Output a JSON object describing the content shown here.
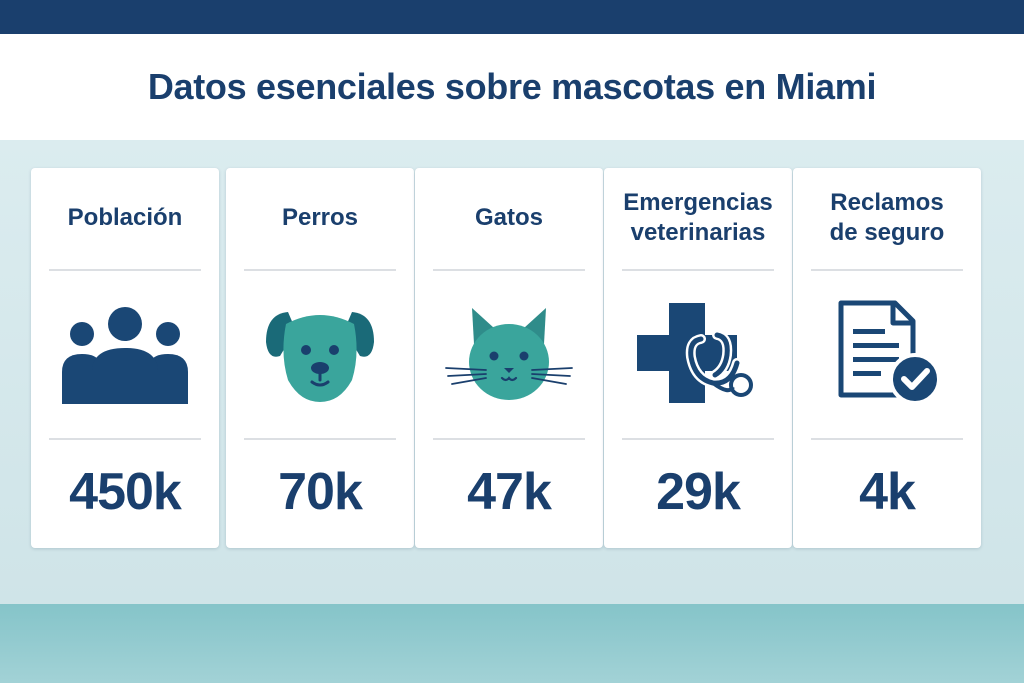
{
  "title": "Datos esenciales sobre mascotas en Miami",
  "colors": {
    "navy": "#1a3f6d",
    "teal": "#3aa59c",
    "background": "#d4e6ea",
    "bottom_band": "#8ec8cc"
  },
  "cards": [
    {
      "label": "Población",
      "icon": "people-icon",
      "value": "450k"
    },
    {
      "label": "Perros",
      "icon": "dog-icon",
      "value": "70k"
    },
    {
      "label": "Gatos",
      "icon": "cat-icon",
      "value": "47k"
    },
    {
      "label": "Emergencias\nveterinarias",
      "icon": "medical-cross-stethoscope-icon",
      "value": "29k"
    },
    {
      "label": "Reclamos\nde seguro",
      "icon": "document-check-icon",
      "value": "4k"
    }
  ]
}
